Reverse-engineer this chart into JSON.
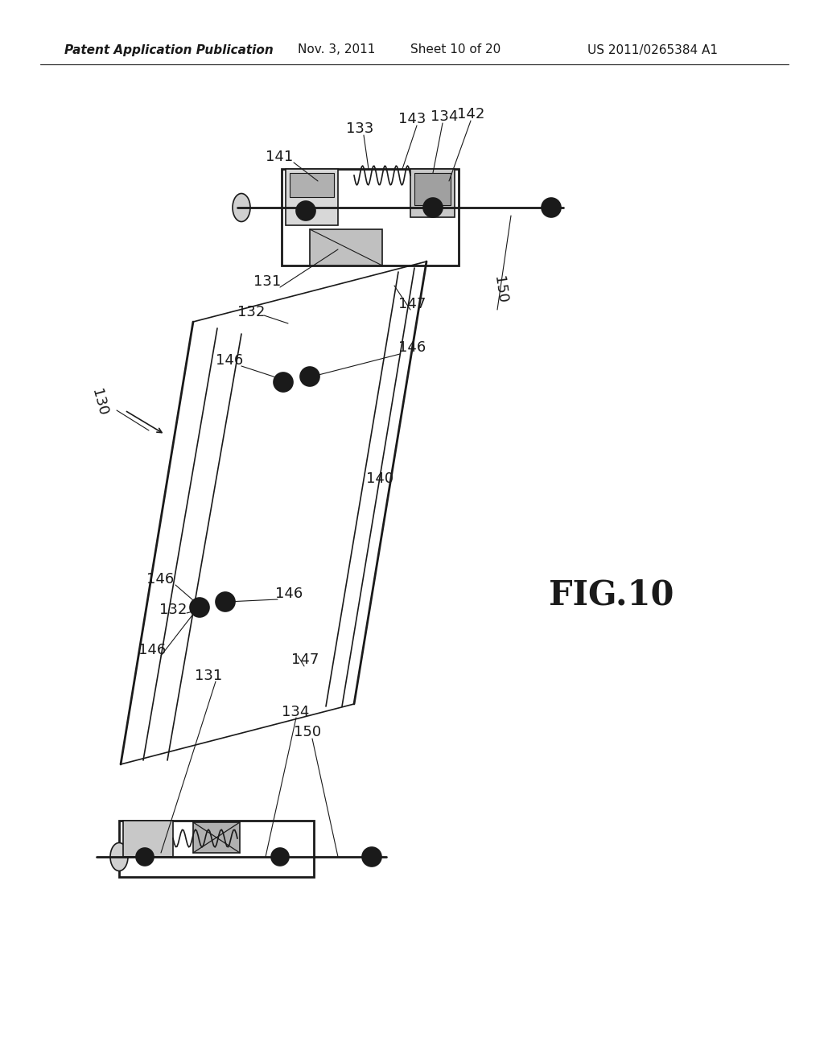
{
  "title_left": "Patent Application Publication",
  "title_mid": "Nov. 3, 2011",
  "title_sheet": "Sheet 10 of 20",
  "title_right": "US 2011/0265384 A1",
  "fig_label": "FIG.10",
  "background_color": "#ffffff",
  "line_color": "#1a1a1a",
  "text_color": "#1a1a1a",
  "header_font_size": 11,
  "annotation_font_size": 13
}
